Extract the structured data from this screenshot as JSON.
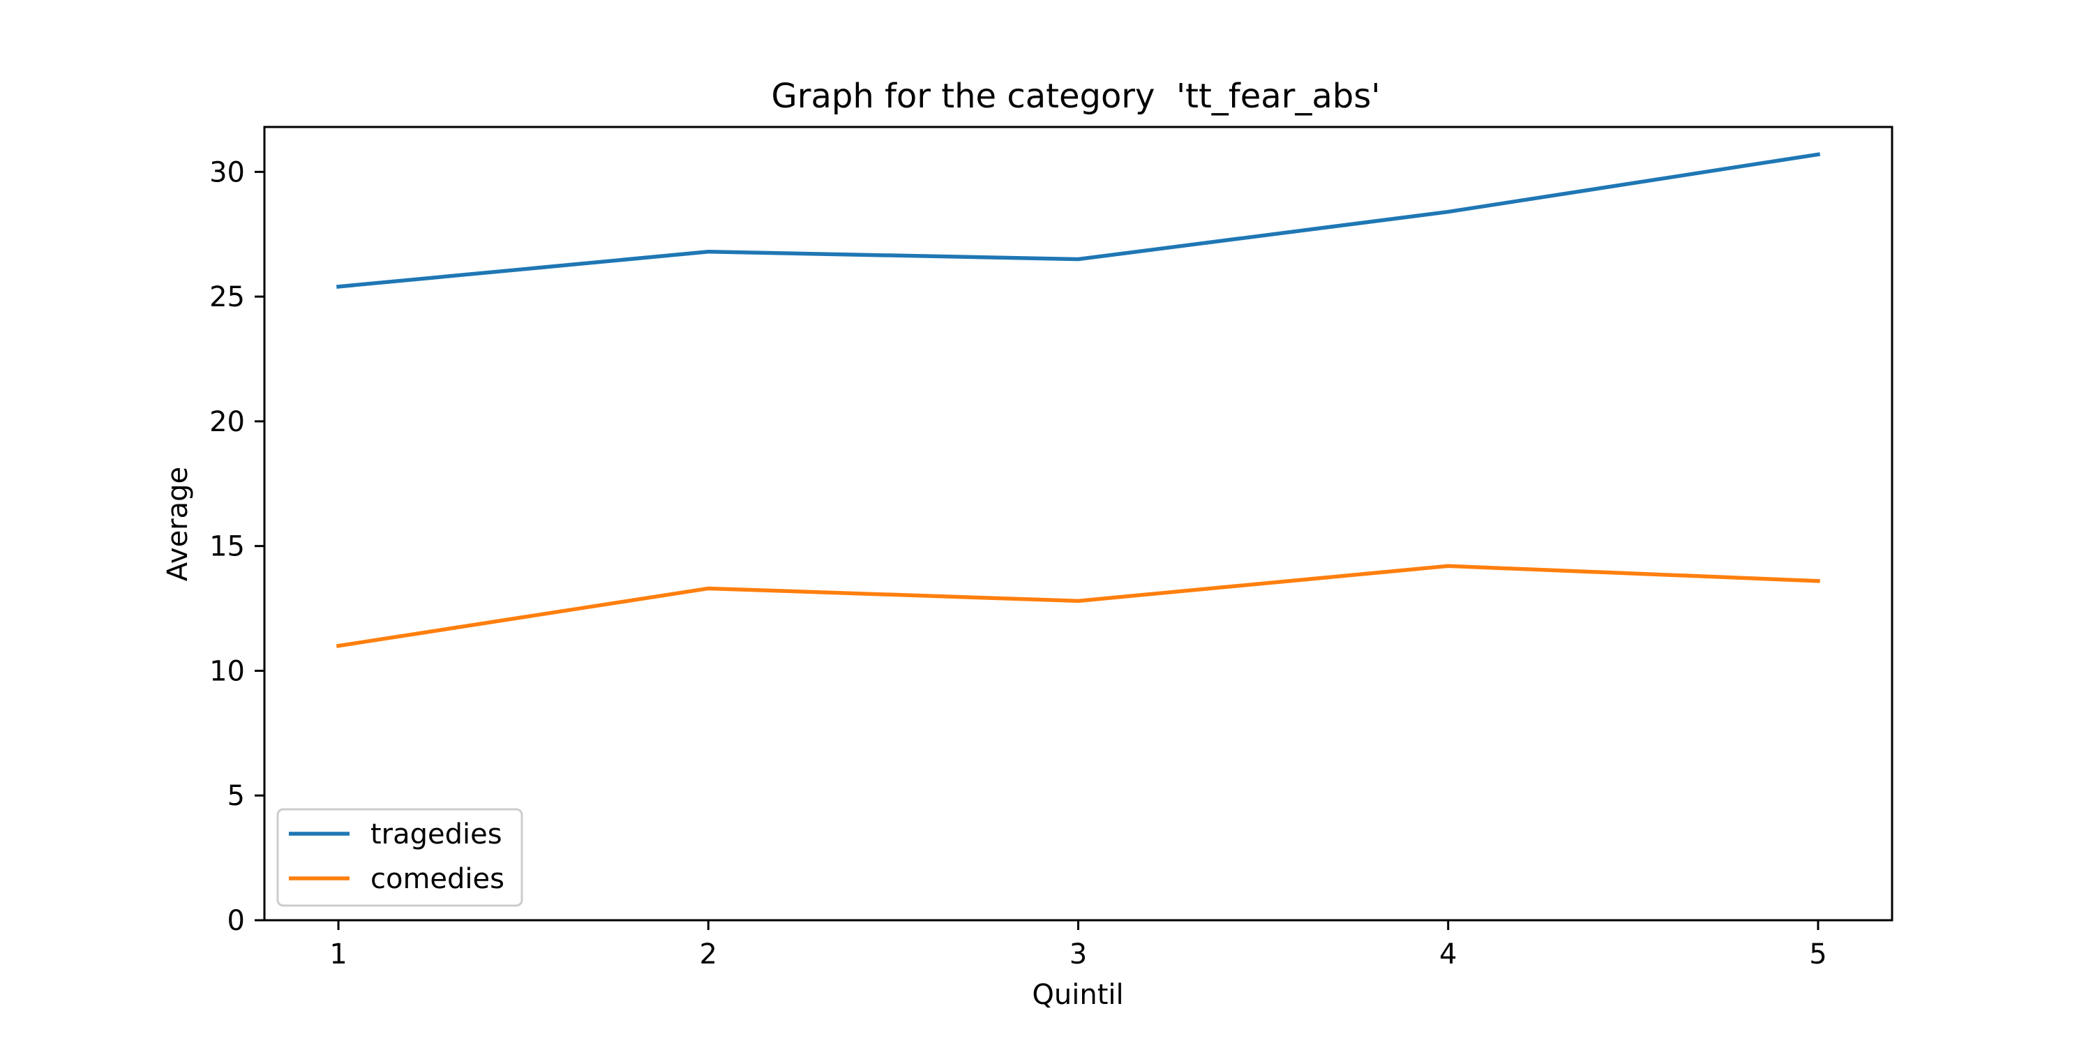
{
  "chart_data": {
    "type": "line",
    "title": "Graph for the category  'tt_fear_abs'",
    "xlabel": "Quintil",
    "ylabel": "Average",
    "x": [
      1,
      2,
      3,
      4,
      5
    ],
    "xlim": [
      0.8,
      5.2
    ],
    "ylim": [
      0,
      31.8
    ],
    "xticks": [
      1,
      2,
      3,
      4,
      5
    ],
    "yticks": [
      0,
      5,
      10,
      15,
      20,
      25,
      30
    ],
    "grid": false,
    "legend_position": "lower-left",
    "series": [
      {
        "name": "tragedies",
        "color": "#1f77b4",
        "values": [
          25.4,
          26.8,
          26.5,
          28.4,
          30.7
        ]
      },
      {
        "name": "comedies",
        "color": "#ff7f0e",
        "values": [
          11.0,
          13.3,
          12.8,
          14.2,
          13.6
        ]
      }
    ]
  }
}
